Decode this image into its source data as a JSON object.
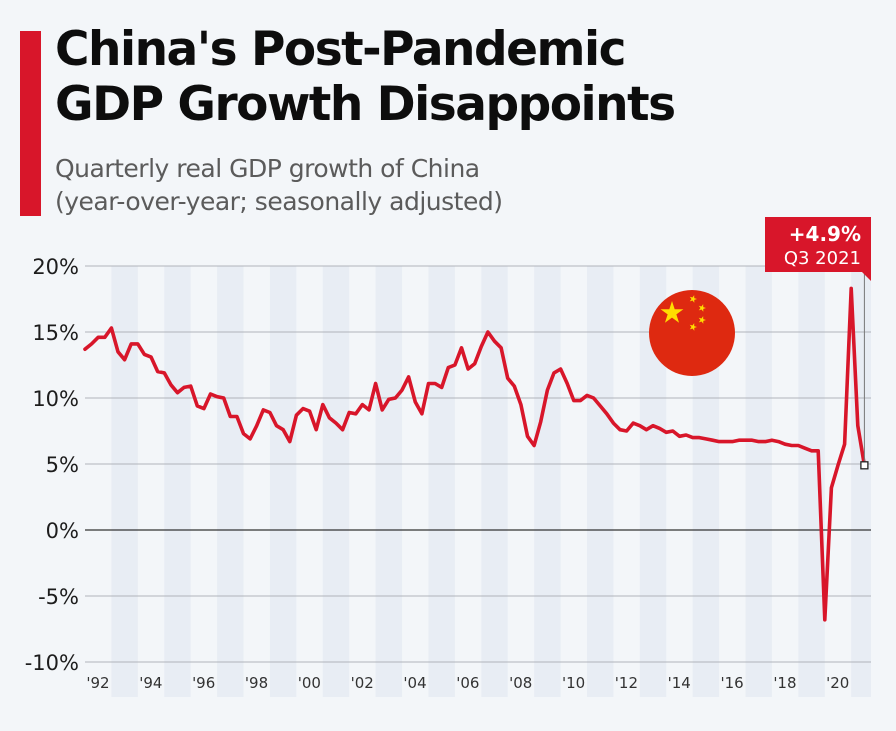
{
  "header": {
    "title_line1": "China's Post-Pandemic",
    "title_line2": "GDP Growth Disappoints",
    "subtitle_line1": "Quarterly real GDP growth of China",
    "subtitle_line2": "(year-over-year; seasonally adjusted)"
  },
  "colors": {
    "accent": "#d8162a",
    "line": "#d8162a",
    "band": "#e8edf4",
    "grid": "#b0b4ba",
    "zero": "#333333"
  },
  "icon": {
    "name": "china-flag-icon",
    "bg": "#de2910",
    "star": "#ffde00"
  },
  "chart_data": {
    "type": "line",
    "title": "China's Post-Pandemic GDP Growth Disappoints",
    "subtitle": "Quarterly real GDP growth of China (year-over-year; seasonally adjusted)",
    "xlabel": "",
    "ylabel": "",
    "ylim": [
      -10,
      20
    ],
    "yticks": [
      20,
      15,
      10,
      5,
      0,
      -5,
      -10
    ],
    "ytick_labels": [
      "20%",
      "15%",
      "10%",
      "5%",
      "0%",
      "-5%",
      "-10%"
    ],
    "xlim": [
      1992.0,
      2021.75
    ],
    "xticks": [
      1992,
      1994,
      1996,
      1998,
      2000,
      2002,
      2004,
      2006,
      2008,
      2010,
      2012,
      2014,
      2016,
      2018,
      2020
    ],
    "xtick_labels": [
      "'92",
      "'94",
      "'96",
      "'98",
      "'00",
      "'02",
      "'04",
      "'06",
      "'08",
      "'10",
      "'12",
      "'14",
      "'16",
      "'18",
      "'20"
    ],
    "grid": true,
    "legend": "none",
    "start_quarter": "Q1 1992",
    "series": [
      {
        "name": "Real GDP growth (%)",
        "values": [
          13.7,
          14.1,
          14.6,
          14.6,
          15.3,
          13.5,
          12.9,
          14.1,
          14.1,
          13.3,
          13.1,
          12.0,
          11.9,
          11.0,
          10.4,
          10.8,
          10.9,
          9.4,
          9.2,
          10.3,
          10.1,
          10.0,
          8.6,
          8.6,
          7.3,
          6.9,
          7.9,
          9.1,
          8.9,
          7.9,
          7.6,
          6.7,
          8.7,
          9.2,
          9.0,
          7.6,
          9.5,
          8.5,
          8.1,
          7.6,
          8.9,
          8.8,
          9.5,
          9.1,
          11.1,
          9.1,
          9.9,
          10.0,
          10.6,
          11.6,
          9.7,
          8.8,
          11.1,
          11.1,
          10.8,
          12.3,
          12.5,
          13.8,
          12.2,
          12.6,
          13.9,
          15.0,
          14.3,
          13.8,
          11.5,
          10.9,
          9.5,
          7.1,
          6.4,
          8.2,
          10.6,
          11.9,
          12.2,
          11.1,
          9.8,
          9.8,
          10.2,
          10.0,
          9.4,
          8.8,
          8.1,
          7.6,
          7.5,
          8.1,
          7.9,
          7.6,
          7.9,
          7.7,
          7.4,
          7.5,
          7.1,
          7.2,
          7.0,
          7.0,
          6.9,
          6.8,
          6.7,
          6.7,
          6.7,
          6.8,
          6.8,
          6.8,
          6.7,
          6.7,
          6.8,
          6.7,
          6.5,
          6.4,
          6.4,
          6.2,
          6.0,
          6.0,
          -6.8,
          3.2,
          4.9,
          6.5,
          18.3,
          7.9,
          4.9
        ]
      }
    ],
    "annotation": {
      "value_label": "+4.9%",
      "date_label": "Q3 2021",
      "value": 4.9
    }
  }
}
